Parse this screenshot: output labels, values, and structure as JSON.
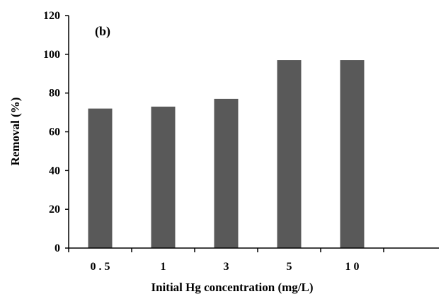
{
  "chart_data": {
    "type": "bar",
    "panel_label": "(b)",
    "categories": [
      "0.5",
      "1",
      "3",
      "5",
      "10"
    ],
    "category_labels": [
      "0 . 5",
      "1",
      "3",
      "5",
      "1 0"
    ],
    "values": [
      72,
      73,
      77,
      97,
      97
    ],
    "xlabel": "Initial Hg concentration (mg/L)",
    "ylabel": "Removal (%)",
    "ylim": [
      0,
      120
    ],
    "yticks": [
      "0",
      "20",
      "40",
      "60",
      "80",
      "100",
      "120"
    ],
    "bar_color": "#595959",
    "grid": false
  }
}
